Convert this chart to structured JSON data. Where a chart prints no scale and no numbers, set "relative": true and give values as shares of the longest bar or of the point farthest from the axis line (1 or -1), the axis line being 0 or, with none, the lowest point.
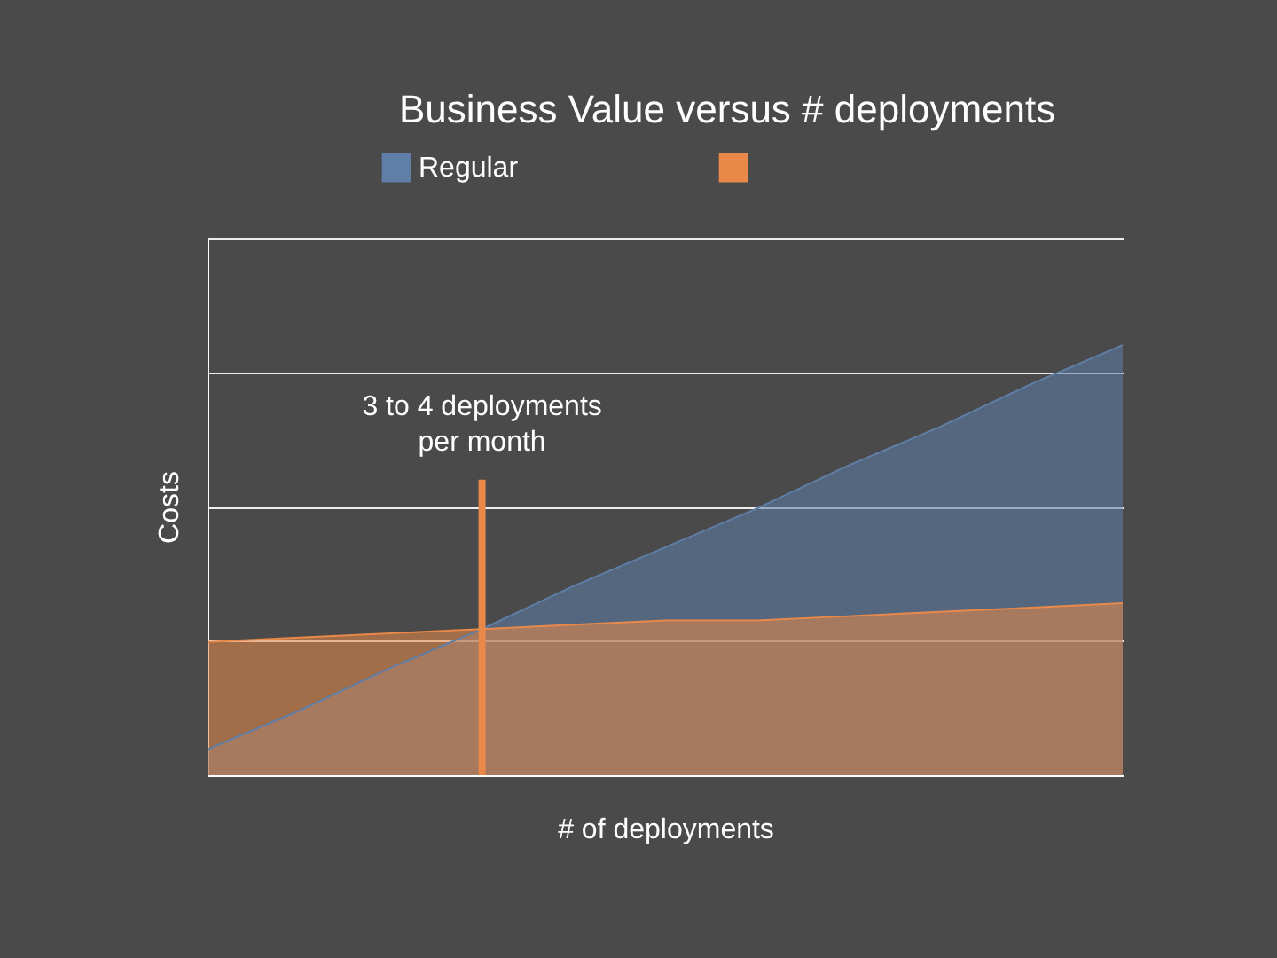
{
  "chart_data": {
    "type": "area",
    "title": "Business Value versus # deployments",
    "xlabel": "# of deployments",
    "ylabel": "Costs",
    "categories": [
      null,
      null,
      null,
      null,
      null,
      null,
      null,
      null,
      null,
      null,
      null
    ],
    "relative": true,
    "tick_labels": false,
    "grid": "y",
    "legend": "top",
    "series": [
      {
        "name": "Regular",
        "color": "#5f7fa8",
        "values": [
          0.06,
          0.15,
          0.25,
          0.34,
          0.44,
          0.53,
          0.62,
          0.72,
          0.81,
          0.91,
          1.0
        ]
      },
      {
        "color": "#e8894a",
        "values": [
          0.31,
          0.32,
          0.33,
          0.34,
          0.35,
          0.36,
          0.36,
          0.37,
          0.38,
          0.39,
          0.4
        ]
      }
    ],
    "annotations": [
      "3 to 4 deployments\nper month"
    ]
  }
}
